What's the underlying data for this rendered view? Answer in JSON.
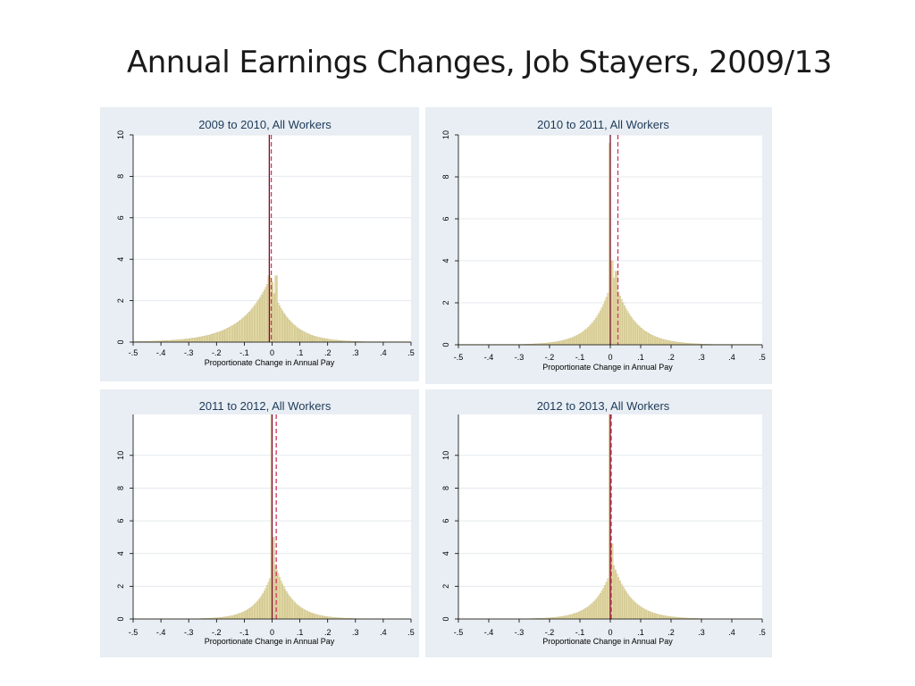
{
  "title": "Annual Earnings Changes, Job Stayers, 2009/13",
  "colors": {
    "bar_fill": "#e6dca8",
    "bar_stroke": "#b5a96a",
    "median_line": "#7a0f2c",
    "mean_line": "#d1365c",
    "panel_bg": "#e8eef3",
    "plot_bg": "#ffffff",
    "grid": "#e4e9ee"
  },
  "chart_data": [
    {
      "type": "bar",
      "title": "2009 to 2010, All Workers",
      "xlabel": "Proportionate Change in Annual Pay",
      "ylabel": "",
      "xlim": [
        -0.5,
        0.5
      ],
      "ylim": [
        0,
        10
      ],
      "xticks": [
        -0.5,
        -0.4,
        -0.3,
        -0.2,
        -0.1,
        0,
        0.1,
        0.2,
        0.3,
        0.4,
        0.5
      ],
      "xtick_labels": [
        "-.5",
        "-.4",
        "-.3",
        "-.2",
        "-.1",
        "0",
        ".1",
        ".2",
        ".3",
        ".4",
        ".5"
      ],
      "yticks": [
        0,
        2,
        4,
        6,
        8,
        10
      ],
      "ytick_labels": [
        "0",
        "2",
        "4",
        "6",
        "8",
        "10"
      ],
      "grid": true,
      "distribution": {
        "center": -0.01,
        "left_scale": 0.1,
        "right_scale": 0.07,
        "peak": 3.0
      },
      "spikes": [
        {
          "x": -0.01,
          "y": 3.2
        },
        {
          "x": 0.0,
          "y": 2.9
        },
        {
          "x": 0.015,
          "y": 3.2
        }
      ],
      "median_x": -0.01,
      "mean_x": -0.003
    },
    {
      "type": "bar",
      "title": "2010 to 2011, All Workers",
      "xlabel": "Proportionate Change in Annual Pay",
      "ylabel": "",
      "xlim": [
        -0.5,
        0.5
      ],
      "ylim": [
        0,
        10
      ],
      "xticks": [
        -0.5,
        -0.4,
        -0.3,
        -0.2,
        -0.1,
        0,
        0.1,
        0.2,
        0.3,
        0.4,
        0.5
      ],
      "xtick_labels": [
        "-.5",
        "-.4",
        "-.3",
        "-.2",
        "-.1",
        "0",
        ".1",
        ".2",
        ".3",
        ".4",
        ".5"
      ],
      "yticks": [
        0,
        2,
        4,
        6,
        8,
        10
      ],
      "ytick_labels": [
        "0",
        "2",
        "4",
        "6",
        "8",
        "10"
      ],
      "grid": true,
      "distribution": {
        "center": 0.01,
        "left_scale": 0.06,
        "right_scale": 0.065,
        "peak": 3.3
      },
      "spikes": [
        {
          "x": 0.0,
          "y": 9.6
        },
        {
          "x": 0.005,
          "y": 4.0
        },
        {
          "x": 0.02,
          "y": 3.5
        }
      ],
      "median_x": 0.0,
      "mean_x": 0.025
    },
    {
      "type": "bar",
      "title": "2011 to 2012, All Workers",
      "xlabel": "Proportionate Change in Annual Pay",
      "ylabel": "",
      "xlim": [
        -0.5,
        0.5
      ],
      "ylim": [
        0,
        12.5
      ],
      "xticks": [
        -0.5,
        -0.4,
        -0.3,
        -0.2,
        -0.1,
        0,
        0.1,
        0.2,
        0.3,
        0.4,
        0.5
      ],
      "xtick_labels": [
        "-.5",
        "-.4",
        "-.3",
        "-.2",
        "-.1",
        "0",
        ".1",
        ".2",
        ".3",
        ".4",
        ".5"
      ],
      "yticks": [
        0,
        2,
        4,
        6,
        8,
        10
      ],
      "ytick_labels": [
        "0",
        "2",
        "4",
        "6",
        "8",
        "10"
      ],
      "grid": true,
      "distribution": {
        "center": 0.01,
        "left_scale": 0.055,
        "right_scale": 0.06,
        "peak": 3.4
      },
      "spikes": [
        {
          "x": 0.0,
          "y": 12.5
        },
        {
          "x": 0.005,
          "y": 5.0
        }
      ],
      "median_x": 0.0,
      "mean_x": 0.015
    },
    {
      "type": "bar",
      "title": "2012 to 2013, All Workers",
      "xlabel": "Proportionate Change in Annual Pay",
      "ylabel": "",
      "xlim": [
        -0.5,
        0.5
      ],
      "ylim": [
        0,
        12.5
      ],
      "xticks": [
        -0.5,
        -0.4,
        -0.3,
        -0.2,
        -0.1,
        0,
        0.1,
        0.2,
        0.3,
        0.4,
        0.5
      ],
      "xtick_labels": [
        "-.5",
        "-.4",
        "-.3",
        "-.2",
        "-.1",
        "0",
        ".1",
        ".2",
        ".3",
        ".4",
        ".5"
      ],
      "yticks": [
        0,
        2,
        4,
        6,
        8,
        10
      ],
      "ytick_labels": [
        "0",
        "2",
        "4",
        "6",
        "8",
        "10"
      ],
      "grid": true,
      "distribution": {
        "center": 0.01,
        "left_scale": 0.055,
        "right_scale": 0.06,
        "peak": 3.4
      },
      "spikes": [
        {
          "x": 0.0,
          "y": 12.5
        },
        {
          "x": 0.005,
          "y": 4.6
        }
      ],
      "median_x": 0.0,
      "mean_x": 0.003
    }
  ]
}
